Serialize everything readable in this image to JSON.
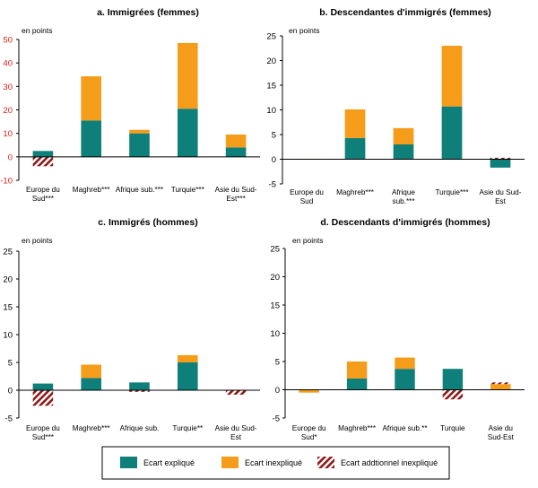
{
  "colors": {
    "explique": "#0f7f79",
    "inexplique": "#f59c1a",
    "additionnel_stripe": "#8b1a1a",
    "tick_highlight": "#e0211b"
  },
  "legend": {
    "items": [
      {
        "label": "Ecart expliqué",
        "key": "explique",
        "pattern": "solid"
      },
      {
        "label": "Ecart inexpliqué",
        "key": "inexplique",
        "pattern": "solid"
      },
      {
        "label": "Ecart addtionnel inexpliqué",
        "key": "additionnel",
        "pattern": "hatch"
      }
    ]
  },
  "chart_data": [
    {
      "type": "bar",
      "title": "a. Immigrées (femmes)",
      "unit_label": "en points",
      "ylim": [
        -10,
        50
      ],
      "yticks": [
        "-10",
        "0",
        "10",
        "20",
        "30",
        "40",
        "50"
      ],
      "ytick_values": [
        -10,
        0,
        10,
        20,
        30,
        40,
        50
      ],
      "ytick_color": "red",
      "categories": [
        [
          "Europe du",
          "Sud***"
        ],
        [
          "Maghreb***"
        ],
        [
          "Afrique sub.***"
        ],
        [
          "Turquie***"
        ],
        [
          "Asie du Sud-",
          "Est***"
        ]
      ],
      "series": [
        {
          "name": "Ecart expliqué",
          "values": [
            2.5,
            15.5,
            10,
            20.5,
            4
          ]
        },
        {
          "name": "Ecart inexpliqué",
          "values": [
            0,
            18.8,
            1.5,
            28,
            5.5
          ]
        },
        {
          "name": "Ecart addtionnel inexpliqué",
          "values": [
            -4,
            0,
            0,
            0,
            0
          ]
        }
      ]
    },
    {
      "type": "bar",
      "title": "b. Descendantes d'immigrés (femmes)",
      "unit_label": "en points",
      "ylim": [
        -5,
        25
      ],
      "yticks": [
        "-5",
        "0",
        "5",
        "10",
        "15",
        "20",
        "25"
      ],
      "ytick_values": [
        -5,
        0,
        5,
        10,
        15,
        20,
        25
      ],
      "ytick_color": "black",
      "categories": [
        [
          "Europe du",
          "Sud"
        ],
        [
          "Maghreb***"
        ],
        [
          "Afrique",
          "sub.***"
        ],
        [
          "Turquie***"
        ],
        [
          "Asie du Sud-",
          "Est"
        ]
      ],
      "series": [
        {
          "name": "Ecart expliqué",
          "values": [
            0,
            4.3,
            3,
            10.7,
            -1.7
          ]
        },
        {
          "name": "Ecart inexpliqué",
          "values": [
            0.1,
            5.8,
            3.3,
            12.3,
            0
          ]
        },
        {
          "name": "Ecart addtionnel inexpliqué",
          "values": [
            0,
            0,
            0,
            0,
            0.3
          ]
        }
      ]
    },
    {
      "type": "bar",
      "title": "c. Immigrés (hommes)",
      "unit_label": "en points",
      "ylim": [
        -5,
        25
      ],
      "yticks": [
        "-5",
        "0",
        "5",
        "10",
        "15",
        "20",
        "25"
      ],
      "ytick_values": [
        -5,
        0,
        5,
        10,
        15,
        20,
        25
      ],
      "ytick_color": "black",
      "categories": [
        [
          "Europe du",
          "Sud***"
        ],
        [
          "Maghreb***"
        ],
        [
          "Afrique sub."
        ],
        [
          "Turquie**"
        ],
        [
          "Asie du Sud-",
          "Est"
        ]
      ],
      "series": [
        {
          "name": "Ecart expliqué",
          "values": [
            1.2,
            2.2,
            1.4,
            5,
            0
          ]
        },
        {
          "name": "Ecart inexpliqué",
          "values": [
            0,
            2.4,
            0,
            1.3,
            0
          ]
        },
        {
          "name": "Ecart addtionnel inexpliqué",
          "values": [
            -2.8,
            0,
            -0.3,
            0,
            -0.8
          ]
        }
      ]
    },
    {
      "type": "bar",
      "title": "d. Descendants d'immigrés (hommes)",
      "unit_label": "en points",
      "ylim": [
        -5,
        25
      ],
      "yticks": [
        "-5",
        "0",
        "5",
        "10",
        "15",
        "20",
        "25"
      ],
      "ytick_values": [
        -5,
        0,
        5,
        10,
        15,
        20,
        25
      ],
      "ytick_color": "black",
      "categories": [
        [
          "Europe du",
          "Sud*"
        ],
        [
          "Maghreb***"
        ],
        [
          "Afrique sub.**"
        ],
        [
          "Turquie"
        ],
        [
          "Asie du",
          "Sud-Est"
        ]
      ],
      "series": [
        {
          "name": "Ecart expliqué",
          "values": [
            0,
            2,
            3.7,
            3.7,
            0
          ]
        },
        {
          "name": "Ecart inexpliqué",
          "values": [
            -0.5,
            3,
            2,
            0,
            1
          ]
        },
        {
          "name": "Ecart addtionnel inexpliqué",
          "values": [
            0,
            0,
            0,
            -1.7,
            0.3
          ]
        }
      ]
    }
  ]
}
